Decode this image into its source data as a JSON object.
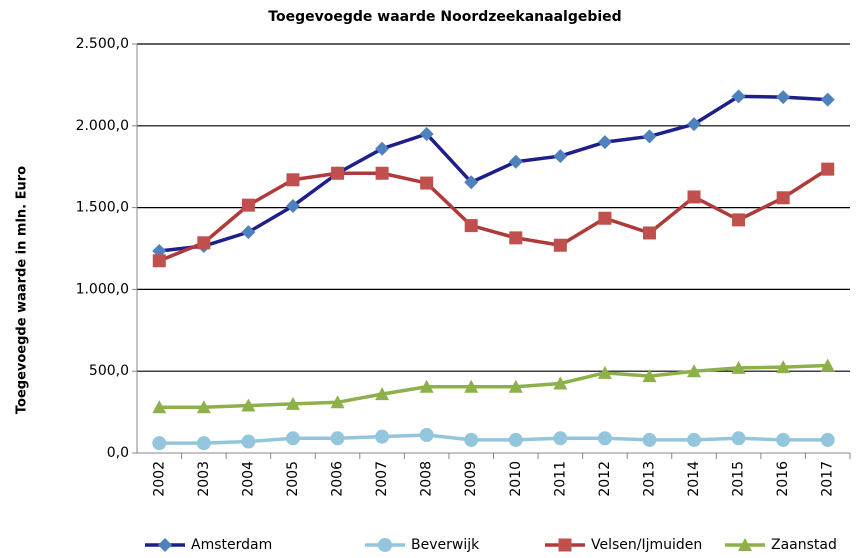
{
  "chart_data": {
    "type": "line",
    "title": "Toegevoegde waarde Noordzeekanaalgebied",
    "ylabel": "Toegevoegde waarde in mln. Euro",
    "categories": [
      "2002",
      "2003",
      "2004",
      "2005",
      "2006",
      "2007",
      "2008",
      "2009",
      "2010",
      "2011",
      "2012",
      "2013",
      "2014",
      "2015",
      "2016",
      "2017"
    ],
    "series": [
      {
        "name": "Amsterdam",
        "color": "#1f1f8c",
        "marker_color": "#4f81bd",
        "marker": "diamond",
        "values": [
          1235,
          1265,
          1350,
          1510,
          1710,
          1860,
          1950,
          1655,
          1780,
          1815,
          1900,
          1935,
          2010,
          2180,
          2175,
          2160
        ]
      },
      {
        "name": "Beverwijk",
        "color": "#93c6dd",
        "marker_color": "#93c6dd",
        "marker": "circle",
        "values": [
          60,
          60,
          70,
          90,
          90,
          100,
          110,
          80,
          80,
          90,
          90,
          80,
          80,
          90,
          80,
          80
        ]
      },
      {
        "name": "Velsen/Ijmuiden",
        "color": "#b03a3a",
        "marker_color": "#c0504d",
        "marker": "square",
        "values": [
          1175,
          1285,
          1515,
          1670,
          1710,
          1710,
          1650,
          1390,
          1315,
          1270,
          1435,
          1345,
          1565,
          1425,
          1560,
          1735
        ]
      },
      {
        "name": "Zaanstad",
        "color": "#8db04a",
        "marker_color": "#8db04a",
        "marker": "triangle",
        "values": [
          280,
          280,
          290,
          300,
          310,
          360,
          405,
          405,
          405,
          425,
          490,
          470,
          500,
          520,
          525,
          535
        ]
      }
    ],
    "ylim": [
      0,
      2500
    ],
    "yticks": [
      {
        "value": 0,
        "label": "0,0"
      },
      {
        "value": 500,
        "label": "500,0"
      },
      {
        "value": 1000,
        "label": "1.000,0"
      },
      {
        "value": 1500,
        "label": "1.500,0"
      },
      {
        "value": 2000,
        "label": "2.000,0"
      },
      {
        "value": 2500,
        "label": "2.500,0"
      }
    ],
    "grid": true,
    "legend": "bottom"
  }
}
